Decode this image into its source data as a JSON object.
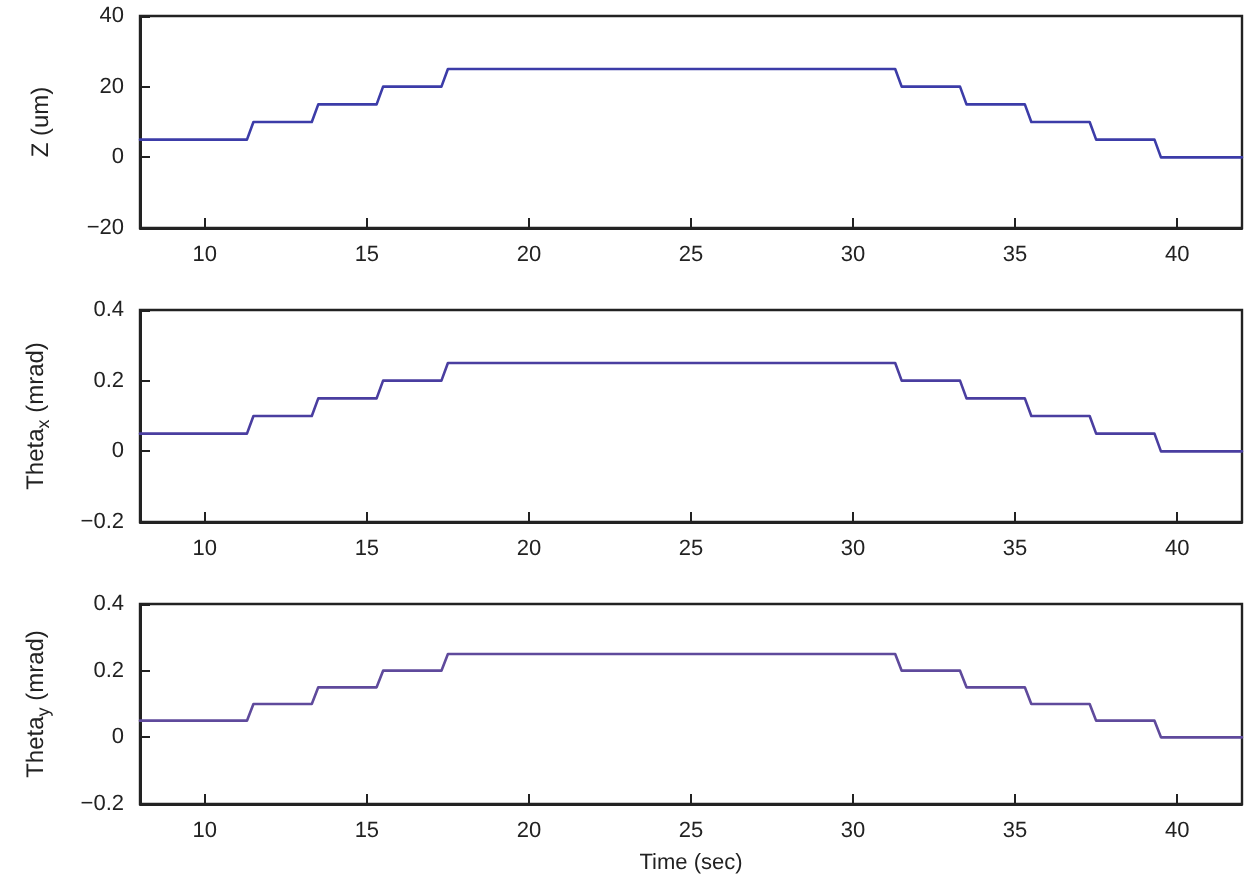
{
  "chart_data": [
    {
      "type": "line",
      "ylabel": "Z (um)",
      "x": [
        8,
        11.3,
        11.5,
        13.3,
        13.5,
        15.3,
        15.5,
        17.3,
        17.5,
        31.3,
        31.5,
        33.3,
        33.5,
        35.3,
        35.5,
        37.3,
        37.5,
        39.3,
        39.5,
        42
      ],
      "series": [
        {
          "color": "#3c3ca8",
          "values": [
            5,
            5,
            10,
            10,
            15,
            15,
            20,
            20,
            25,
            25,
            20,
            20,
            15,
            15,
            10,
            10,
            5,
            5,
            0,
            0
          ]
        }
      ],
      "xlim": [
        8,
        42
      ],
      "xticks": [
        10,
        15,
        20,
        25,
        30,
        35,
        40
      ],
      "ylim": [
        -20,
        40
      ],
      "yticks": [
        -20,
        0,
        20,
        40
      ],
      "marker": "none",
      "line_style": "solid"
    },
    {
      "type": "line",
      "ylabel": "Theta$_{x}$ (mrad)",
      "x": [
        8,
        11.3,
        11.5,
        13.3,
        13.5,
        15.3,
        15.5,
        17.3,
        17.5,
        31.3,
        31.5,
        33.3,
        33.5,
        35.3,
        35.5,
        37.3,
        37.5,
        39.3,
        39.5,
        42
      ],
      "series": [
        {
          "color": "#4a3ea0",
          "values": [
            0.05,
            0.05,
            0.1,
            0.1,
            0.15,
            0.15,
            0.2,
            0.2,
            0.25,
            0.25,
            0.2,
            0.2,
            0.15,
            0.15,
            0.1,
            0.1,
            0.05,
            0.05,
            0,
            0
          ]
        }
      ],
      "xlim": [
        8,
        42
      ],
      "xticks": [
        10,
        15,
        20,
        25,
        30,
        35,
        40
      ],
      "ylim": [
        -0.2,
        0.4
      ],
      "yticks": [
        -0.2,
        0,
        0.2,
        0.4
      ],
      "marker": "none",
      "line_style": "solid"
    },
    {
      "type": "line",
      "ylabel": "Theta$_{y}$ (mrad)",
      "xlabel": "Time (sec)",
      "x": [
        8,
        11.3,
        11.5,
        13.3,
        13.5,
        15.3,
        15.5,
        17.3,
        17.5,
        31.3,
        31.5,
        33.3,
        33.5,
        35.3,
        35.5,
        37.3,
        37.5,
        39.3,
        39.5,
        42
      ],
      "series": [
        {
          "color": "#5f4a9c",
          "values": [
            0.05,
            0.05,
            0.1,
            0.1,
            0.15,
            0.15,
            0.2,
            0.2,
            0.25,
            0.25,
            0.2,
            0.2,
            0.15,
            0.15,
            0.1,
            0.1,
            0.05,
            0.05,
            0,
            0
          ]
        }
      ],
      "xlim": [
        8,
        42
      ],
      "xticks": [
        10,
        15,
        20,
        25,
        30,
        35,
        40
      ],
      "ylim": [
        -0.2,
        0.4
      ],
      "yticks": [
        -0.2,
        0,
        0.2,
        0.4
      ],
      "marker": "none",
      "line_style": "solid"
    }
  ]
}
